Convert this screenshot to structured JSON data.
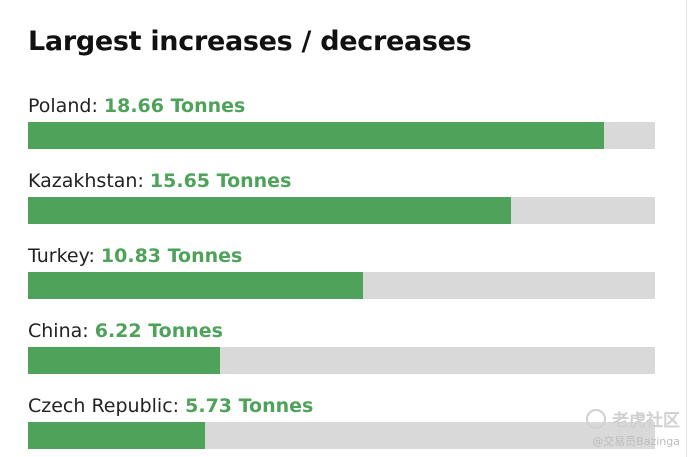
{
  "chart_data": {
    "type": "bar",
    "orientation": "horizontal",
    "title": "Largest increases / decreases",
    "unit": "Tonnes",
    "xlim": [
      0,
      20.3
    ],
    "categories": [
      "Poland",
      "Kazakhstan",
      "Turkey",
      "China",
      "Czech Republic"
    ],
    "values": [
      18.66,
      15.65,
      10.83,
      6.22,
      5.73
    ],
    "value_labels": [
      "18.66 Tonnes",
      "15.65 Tonnes",
      "10.83 Tonnes",
      "6.22 Tonnes",
      "5.73 Tonnes"
    ],
    "colors": {
      "bar": "#4ea25a",
      "track": "#d9d9d9",
      "value_text": "#4ea25a"
    }
  },
  "watermark": {
    "logo_text": "老虎社区",
    "handle": "@交易员Bazinga"
  }
}
